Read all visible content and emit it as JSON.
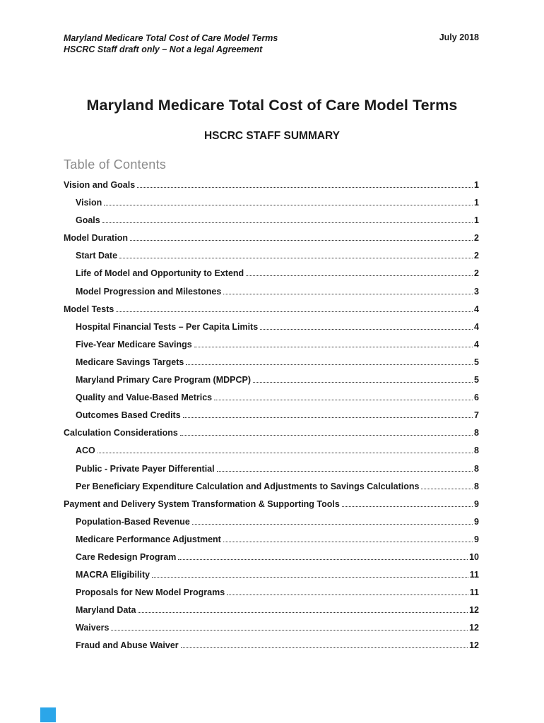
{
  "page_header": {
    "title_line": "Maryland Medicare Total Cost of Care Model Terms",
    "draft_line": "HSCRC Staff draft only – Not a legal Agreement",
    "date": "July 2018"
  },
  "document": {
    "title": "Maryland Medicare Total Cost of Care Model Terms",
    "subtitle": "HSCRC STAFF SUMMARY"
  },
  "toc": {
    "heading": "Table of Contents",
    "entries": [
      {
        "label": "Vision and Goals",
        "page": "1",
        "level": 1
      },
      {
        "label": "Vision",
        "page": "1",
        "level": 2
      },
      {
        "label": "Goals",
        "page": "1",
        "level": 2
      },
      {
        "label": "Model Duration",
        "page": "2",
        "level": 1
      },
      {
        "label": "Start Date",
        "page": "2",
        "level": 2
      },
      {
        "label": "Life of Model and Opportunity to Extend",
        "page": "2",
        "level": 2
      },
      {
        "label": "Model Progression and Milestones",
        "page": "3",
        "level": 2
      },
      {
        "label": "Model Tests",
        "page": "4",
        "level": 1
      },
      {
        "label": "Hospital Financial Tests – Per Capita Limits",
        "page": "4",
        "level": 2
      },
      {
        "label": "Five-Year Medicare Savings",
        "page": "4",
        "level": 2
      },
      {
        "label": "Medicare Savings Targets",
        "page": "5",
        "level": 2
      },
      {
        "label": "Maryland Primary Care Program (MDPCP)",
        "page": "5",
        "level": 2
      },
      {
        "label": "Quality and Value-Based Metrics",
        "page": "6",
        "level": 2
      },
      {
        "label": "Outcomes Based Credits",
        "page": "7",
        "level": 2
      },
      {
        "label": "Calculation Considerations",
        "page": "8",
        "level": 1
      },
      {
        "label": "ACO",
        "page": "8",
        "level": 2
      },
      {
        "label": "Public - Private Payer Differential",
        "page": "8",
        "level": 2
      },
      {
        "label": "Per Beneficiary Expenditure Calculation and Adjustments to Savings Calculations",
        "page": "8",
        "level": 2
      },
      {
        "label": "Payment and Delivery System Transformation & Supporting Tools",
        "page": "9",
        "level": 1
      },
      {
        "label": "Population-Based Revenue",
        "page": "9",
        "level": 2
      },
      {
        "label": "Medicare Performance Adjustment",
        "page": "9",
        "level": 2
      },
      {
        "label": "Care Redesign Program",
        "page": "10",
        "level": 2
      },
      {
        "label": "MACRA Eligibility",
        "page": "11",
        "level": 2
      },
      {
        "label": "Proposals for New Model Programs",
        "page": "11",
        "level": 2
      },
      {
        "label": "Maryland Data",
        "page": "12",
        "level": 2
      },
      {
        "label": "Waivers",
        "page": "12",
        "level": 2
      },
      {
        "label": "Fraud and Abuse Waiver",
        "page": "12",
        "level": 2
      }
    ]
  },
  "colors": {
    "body_text": "#1a1a1a",
    "toc_heading_gray": "#8a8a8a",
    "field_marker_blue": "#2ba6e9"
  }
}
